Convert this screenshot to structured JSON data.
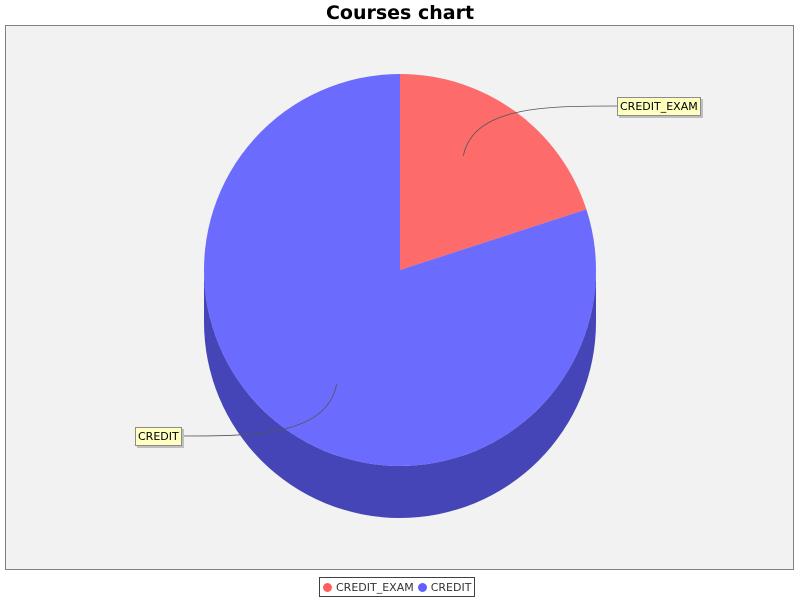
{
  "chart_data": {
    "type": "pie",
    "title": "Courses chart",
    "three_d": true,
    "series": [
      {
        "name": "CREDIT_EXAM",
        "value": 20,
        "color": "#ff5f5f"
      },
      {
        "name": "CREDIT",
        "value": 80,
        "color": "#6060ff"
      }
    ],
    "legend": {
      "placement": "bottom-center",
      "entries": [
        "CREDIT_EXAM",
        "CREDIT"
      ]
    },
    "plot_background": "#f2f2f2"
  }
}
